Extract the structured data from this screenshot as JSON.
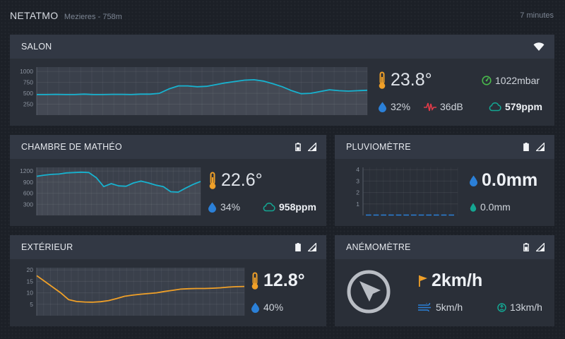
{
  "header": {
    "brand": "NETATMO",
    "location": "Mezieres - 758m",
    "updated": "7 minutes"
  },
  "salon": {
    "title": "SALON",
    "temperature": "23.8°",
    "pressure": "1022mbar",
    "humidity": "32%",
    "noise": "36dB",
    "co2": "579ppm",
    "chart": {
      "type": "area",
      "yticks": [
        "1000",
        "750",
        "500",
        "250"
      ],
      "ylim": [
        0,
        1100
      ],
      "color": "#17b2cf",
      "values": [
        470,
        470,
        475,
        470,
        470,
        480,
        470,
        470,
        475,
        475,
        470,
        480,
        480,
        500,
        600,
        670,
        670,
        650,
        660,
        700,
        740,
        770,
        800,
        810,
        780,
        720,
        650,
        560,
        490,
        500,
        540,
        580,
        560,
        550,
        560,
        570
      ]
    }
  },
  "chambre": {
    "title": "CHAMBRE DE MATHÉO",
    "temperature": "22.6°",
    "humidity": "34%",
    "co2": "958ppm",
    "chart": {
      "type": "area",
      "yticks": [
        "1200",
        "900",
        "600",
        "300"
      ],
      "ylim": [
        0,
        1300
      ],
      "color": "#17b2cf",
      "values": [
        1060,
        1090,
        1110,
        1120,
        1150,
        1160,
        1170,
        1160,
        1020,
        780,
        860,
        800,
        790,
        880,
        930,
        880,
        820,
        780,
        640,
        630,
        740,
        840,
        920
      ]
    }
  },
  "pluvio": {
    "title": "PLUVIOMÈTRE",
    "rain_hour": "0.0mm",
    "rain_day": "0.0mm",
    "chart": {
      "type": "bar",
      "yticks": [
        "4",
        "3",
        "2",
        "1"
      ],
      "ylim": [
        0,
        4.2
      ],
      "color": "#2b80d8",
      "values": [
        0,
        0,
        0,
        0,
        0,
        0,
        0,
        0,
        0,
        0,
        0,
        0
      ]
    }
  },
  "exterieur": {
    "title": "EXTÉRIEUR",
    "temperature": "12.8°",
    "humidity": "40%",
    "chart": {
      "type": "line",
      "yticks": [
        "20",
        "15",
        "10",
        "5"
      ],
      "ylim": [
        0,
        21
      ],
      "color": "#f0a028",
      "values": [
        17.5,
        15,
        12.5,
        10,
        7,
        6.2,
        6,
        5.9,
        6.1,
        6.6,
        7.5,
        8.5,
        9,
        9.4,
        9.7,
        10,
        10.6,
        11.1,
        11.6,
        11.8,
        11.9,
        11.9,
        12,
        12.2,
        12.5,
        12.7,
        12.8
      ]
    }
  },
  "anemo": {
    "title": "ANÉMOMÈTRE",
    "wind": "2km/h",
    "wind_avg": "5km/h",
    "gust": "13km/h"
  },
  "colors": {
    "background": "#1c2027",
    "card": "#2a2f38",
    "card_header": "#323844",
    "temperature_icon": "#f0a028",
    "humidity_icon": "#2b80d8",
    "pressure_icon": "#49b84c",
    "noise_icon": "#e03b49",
    "co2_icon": "#14a692"
  }
}
